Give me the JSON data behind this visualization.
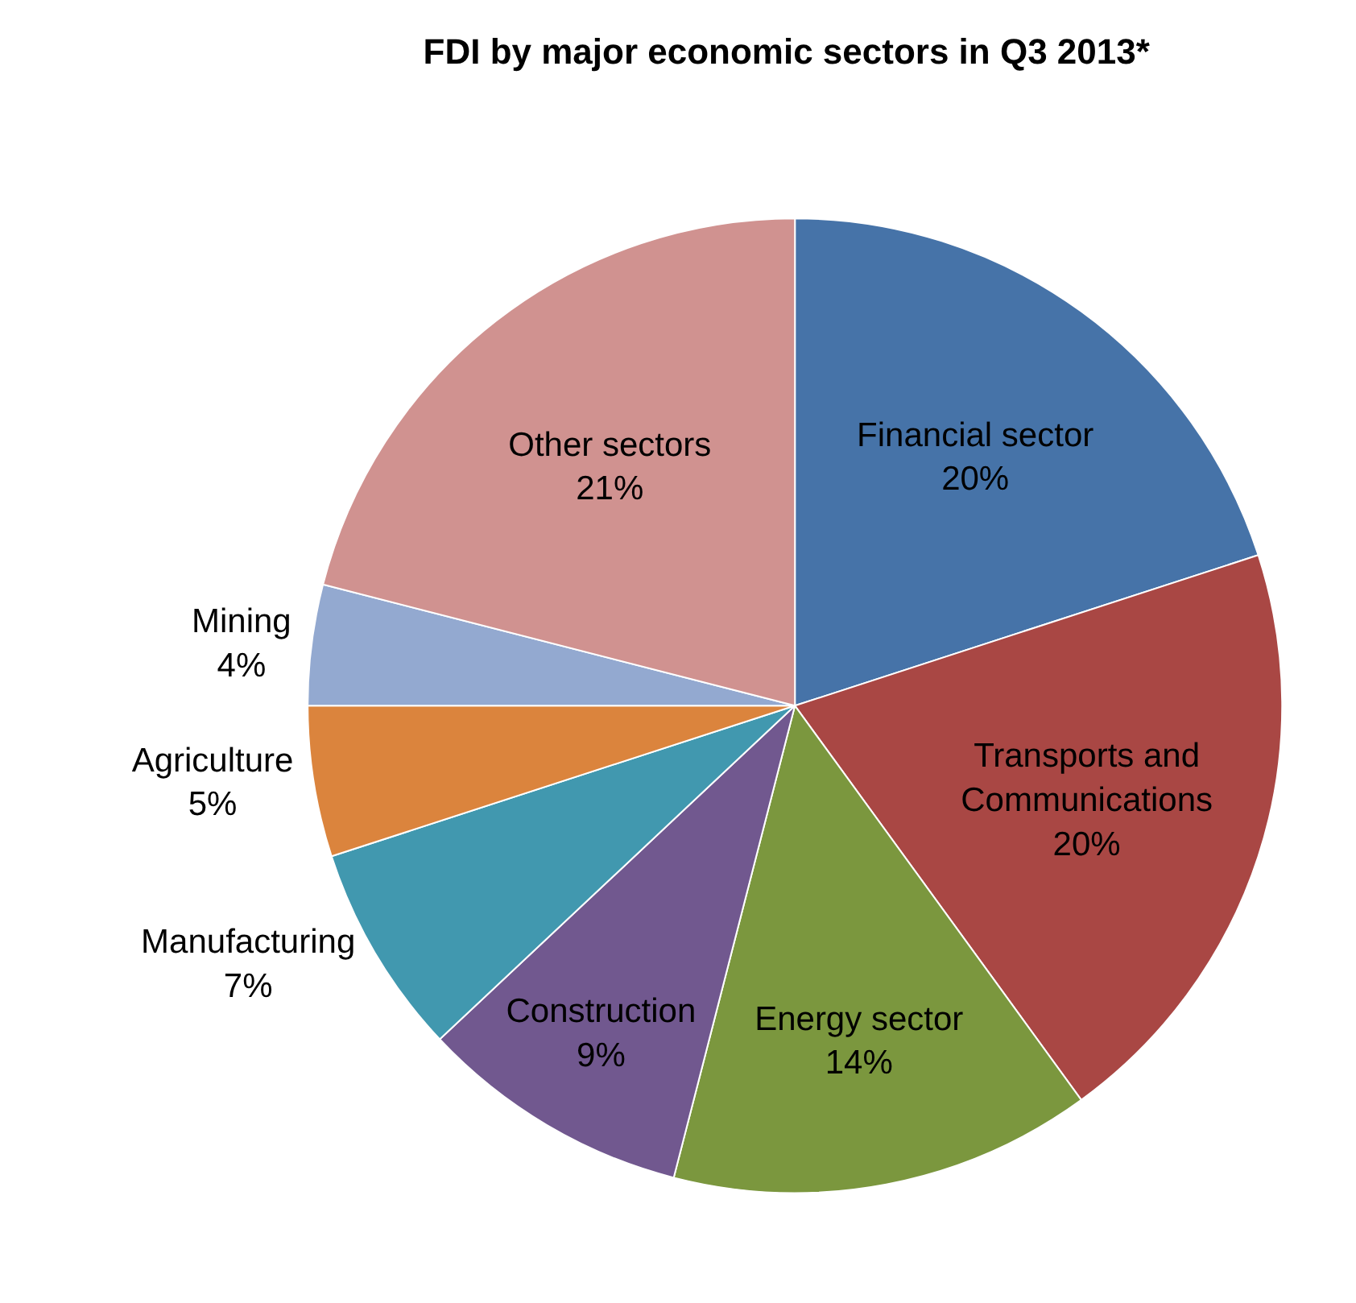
{
  "chart_data": {
    "type": "pie",
    "title": "FDI by major economic sectors in Q3 2013*",
    "categories": [
      "Financial sector",
      "Transports and Communications",
      "Energy sector",
      "Construction",
      "Manufacturing",
      "Agriculture",
      "Mining",
      "Other sectors"
    ],
    "values": [
      20,
      20,
      14,
      9,
      7,
      5,
      4,
      21
    ],
    "value_labels": [
      "20%",
      "20%",
      "14%",
      "9%",
      "7%",
      "5%",
      "4%",
      "21%"
    ],
    "colors": [
      "#4673a8",
      "#a94744",
      "#7b973e",
      "#71588f",
      "#4198af",
      "#db843d",
      "#93a9d0",
      "#d09290"
    ],
    "legend": false
  }
}
